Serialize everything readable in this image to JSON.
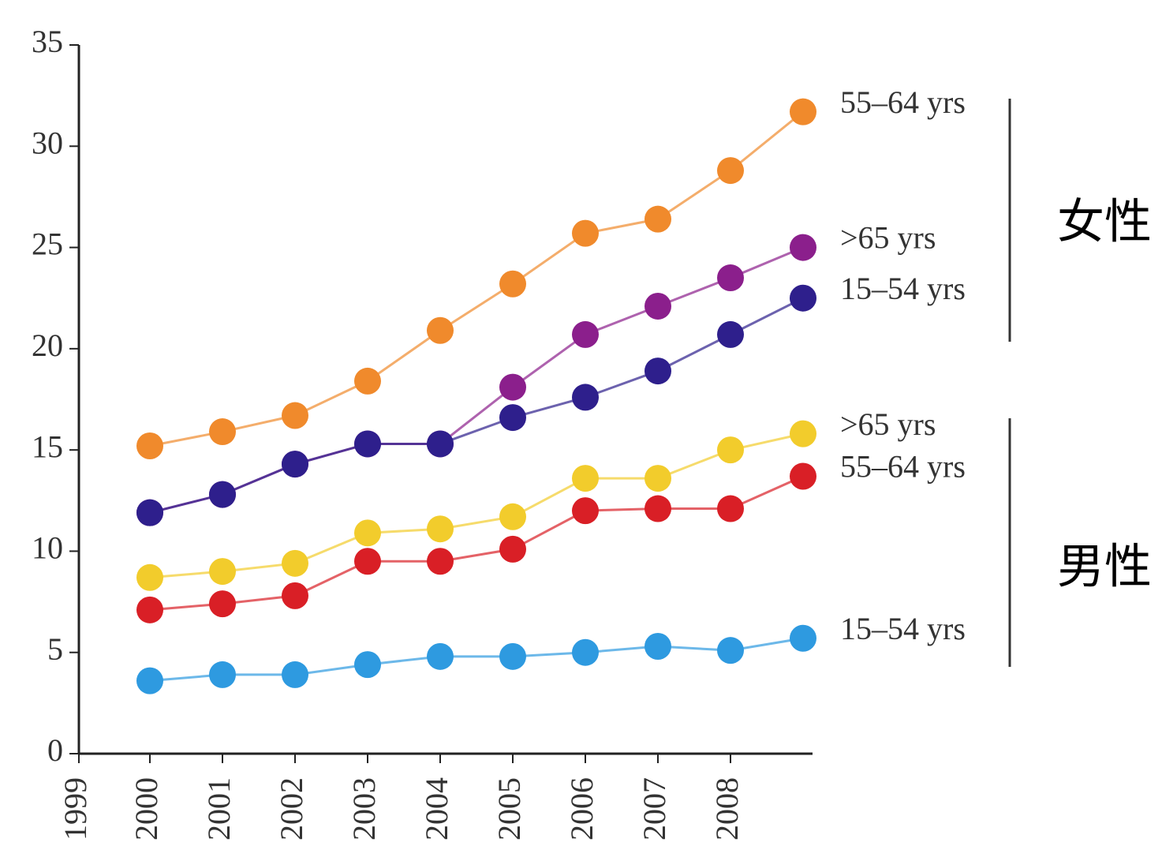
{
  "chart_data": {
    "type": "line",
    "categories": [
      "1999",
      "2000",
      "2001",
      "2002",
      "2003",
      "2004",
      "2005",
      "2006",
      "2007",
      "2008"
    ],
    "ylim": [
      0,
      35
    ],
    "yticks": [
      0,
      5,
      10,
      15,
      20,
      25,
      30,
      35
    ],
    "series": [
      {
        "name": "55–64 yrs",
        "group": 0,
        "color": "#f08a2c",
        "values": [
          15.2,
          15.9,
          16.7,
          18.4,
          20.9,
          23.2,
          25.7,
          26.4,
          28.8,
          31.7
        ]
      },
      {
        "name": ">65 yrs",
        "group": 0,
        "color": "#8b1f8c",
        "values": [
          11.9,
          12.8,
          14.3,
          15.3,
          15.3,
          18.1,
          20.7,
          22.1,
          23.5,
          25.0
        ]
      },
      {
        "name": "15–54 yrs",
        "group": 0,
        "color": "#2e1f8c",
        "values": [
          11.9,
          12.8,
          14.3,
          15.3,
          15.3,
          16.6,
          17.6,
          18.9,
          20.7,
          22.5
        ]
      },
      {
        "name": ">65 yrs",
        "group": 1,
        "color": "#f2cc2c",
        "values": [
          8.7,
          9.0,
          9.4,
          10.9,
          11.1,
          11.7,
          13.6,
          13.6,
          15.0,
          15.8
        ]
      },
      {
        "name": "55–64 yrs",
        "group": 1,
        "color": "#d91f26",
        "values": [
          7.1,
          7.4,
          7.8,
          9.5,
          9.5,
          10.1,
          12.0,
          12.1,
          12.1,
          13.7
        ]
      },
      {
        "name": "15–54 yrs",
        "group": 1,
        "color": "#2e9ae0",
        "values": [
          3.6,
          3.9,
          3.9,
          4.4,
          4.8,
          4.8,
          5.0,
          5.3,
          5.1,
          5.7
        ]
      }
    ],
    "groups": [
      "女性",
      "男性"
    ]
  }
}
